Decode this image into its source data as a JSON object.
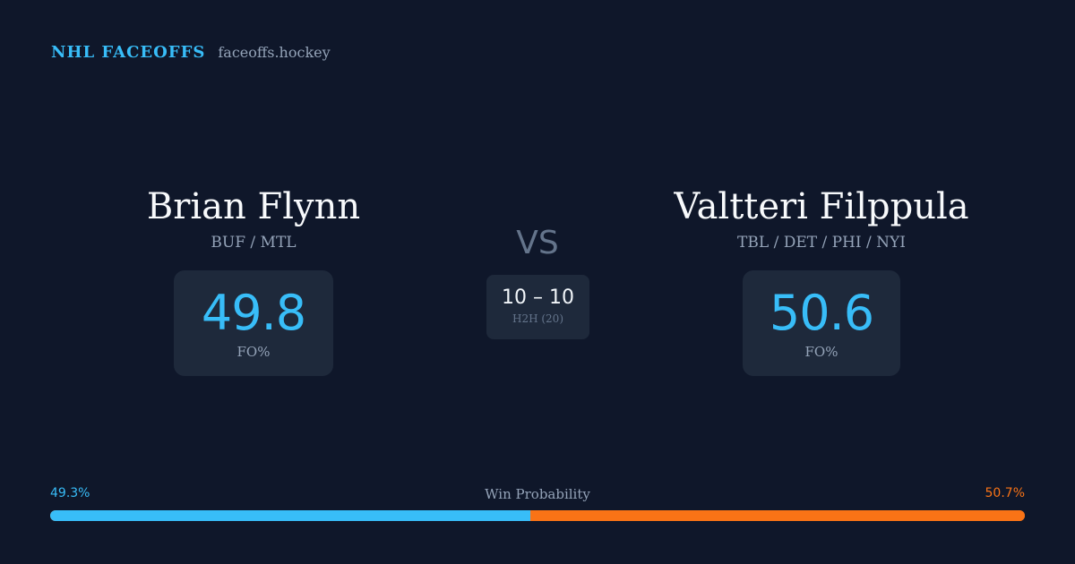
{
  "brand": {
    "name": "NHL FACEOFFS",
    "domain": "faceoffs.hockey"
  },
  "player1": {
    "name": "Brian Flynn",
    "teams": "BUF / MTL",
    "fo_pct": "49.8",
    "fo_label": "FO%"
  },
  "player2": {
    "name": "Valtteri Filppula",
    "teams": "TBL / DET / PHI / NYI",
    "fo_pct": "50.6",
    "fo_label": "FO%"
  },
  "matchup": {
    "vs": "VS",
    "h2h_score": "10 – 10",
    "h2h_label": "H2H (20)"
  },
  "win_probability": {
    "title": "Win Probability",
    "left_label": "49.3%",
    "right_label": "50.7%",
    "left_value": 49.3,
    "right_value": 50.7
  },
  "colors": {
    "background": "#0f172a",
    "accent_left": "#38bdf8",
    "accent_right": "#f97316",
    "card": "#1e293b"
  }
}
